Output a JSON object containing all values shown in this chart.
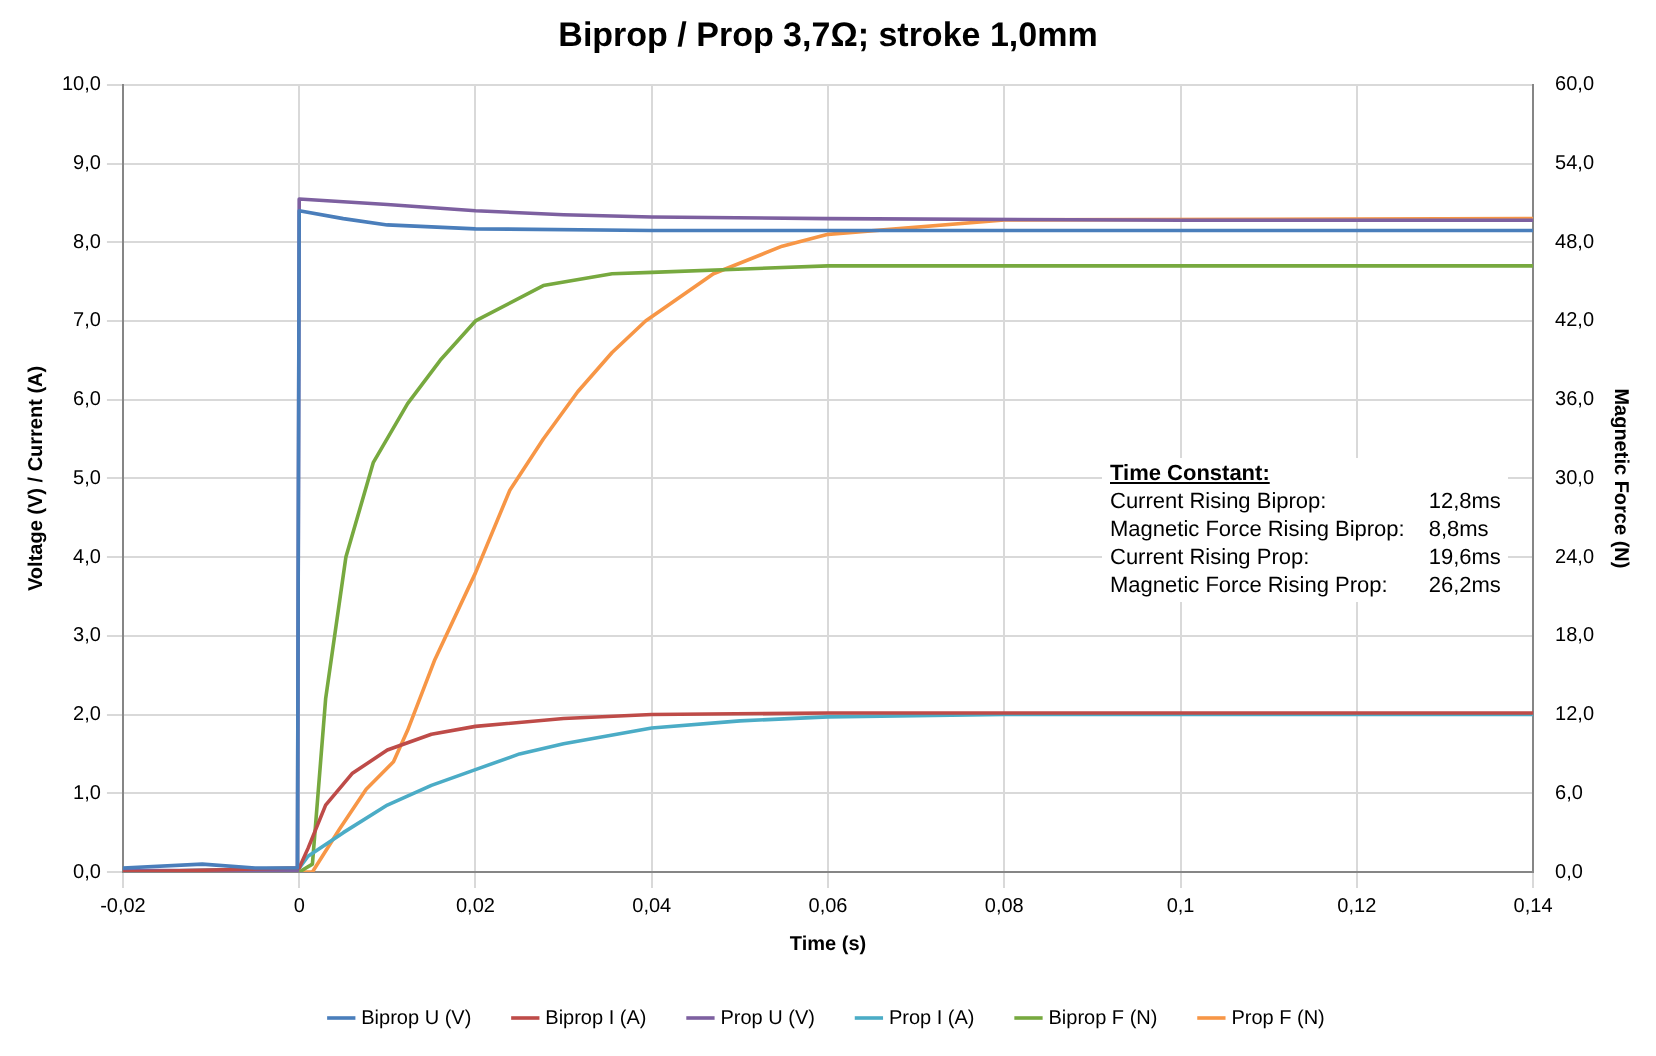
{
  "chart_data": {
    "type": "line",
    "title": "Biprop / Prop 3,7Ω; stroke 1,0mm",
    "xlabel": "Time (s)",
    "ylabel": "Voltage (V) / Current (A)",
    "y2label": "Magnetic Force (N)",
    "xlim": [
      -0.02,
      0.14
    ],
    "xticks": [
      {
        "value": -0.02,
        "label": "-0,02"
      },
      0,
      {
        "value": 0.02,
        "label": "0,02"
      },
      {
        "value": 0.04,
        "label": "0,04"
      },
      {
        "value": 0.06,
        "label": "0,06"
      },
      {
        "value": 0.08,
        "label": "0,08"
      },
      {
        "value": 0.1,
        "label": "0,1"
      },
      {
        "value": 0.12,
        "label": "0,12"
      },
      {
        "value": 0.14,
        "label": "0,14"
      }
    ],
    "ylim": [
      0,
      10
    ],
    "yticks": [
      {
        "value": 0,
        "label": "0,0"
      },
      {
        "value": 1,
        "label": "1,0"
      },
      {
        "value": 2,
        "label": "2,0"
      },
      {
        "value": 3,
        "label": "3,0"
      },
      {
        "value": 4,
        "label": "4,0"
      },
      {
        "value": 5,
        "label": "5,0"
      },
      {
        "value": 6,
        "label": "6,0"
      },
      {
        "value": 7,
        "label": "7,0"
      },
      {
        "value": 8,
        "label": "8,0"
      },
      {
        "value": 9,
        "label": "9,0"
      },
      {
        "value": 10,
        "label": "10,0"
      }
    ],
    "y2lim": [
      0,
      60
    ],
    "y2ticks": [
      {
        "value": 0,
        "label": "0,0"
      },
      {
        "value": 6,
        "label": "6,0"
      },
      {
        "value": 12,
        "label": "12,0"
      },
      {
        "value": 18,
        "label": "18,0"
      },
      {
        "value": 24,
        "label": "24,0"
      },
      {
        "value": 30,
        "label": "30,0"
      },
      {
        "value": 36,
        "label": "36,0"
      },
      {
        "value": 42,
        "label": "42,0"
      },
      {
        "value": 48,
        "label": "48,0"
      },
      {
        "value": 54,
        "label": "54,0"
      },
      {
        "value": 60,
        "label": "60,0"
      }
    ],
    "grid": true,
    "legend": "bottom",
    "marker": "none",
    "line_style": "solid",
    "series": [
      {
        "name": "Biprop U (V)",
        "color": "#4a7ebb",
        "x": [
          -0.02,
          -0.011,
          -0.005,
          -0.0002,
          0,
          0.005,
          0.01,
          0.02,
          0.04,
          0.08,
          0.14
        ],
        "values": [
          0.05,
          0.1,
          0.05,
          0.05,
          8.4,
          8.3,
          8.22,
          8.17,
          8.15,
          8.15,
          8.15
        ]
      },
      {
        "name": "Biprop I (A)",
        "color": "#be4b48",
        "x": [
          -0.02,
          0,
          0.001,
          0.003,
          0.006,
          0.01,
          0.015,
          0.02,
          0.03,
          0.04,
          0.06,
          0.14
        ],
        "values": [
          0,
          0.05,
          0.3,
          0.85,
          1.25,
          1.55,
          1.75,
          1.85,
          1.95,
          2,
          2.02,
          2.02
        ]
      },
      {
        "name": "Prop U (V)",
        "color": "#7d60a0",
        "x": [
          -0.02,
          -0.0002,
          0,
          0.01,
          0.02,
          0.03,
          0.04,
          0.06,
          0.1,
          0.14
        ],
        "values": [
          0.02,
          0.02,
          8.55,
          8.48,
          8.4,
          8.35,
          8.32,
          8.3,
          8.28,
          8.28
        ]
      },
      {
        "name": "Prop I (A)",
        "color": "#4bacc6",
        "x": [
          -0.02,
          0,
          0.001,
          0.005,
          0.01,
          0.015,
          0.02,
          0.025,
          0.03,
          0.04,
          0.05,
          0.06,
          0.08,
          0.14
        ],
        "values": [
          0,
          0.05,
          0.2,
          0.5,
          0.85,
          1.1,
          1.3,
          1.5,
          1.63,
          1.83,
          1.92,
          1.97,
          2,
          2
        ]
      },
      {
        "name": "Biprop F (N)",
        "color": "#77a93f",
        "axis": "y2",
        "x": [
          -0.02,
          0,
          0.0015,
          0.003,
          0.0053,
          0.0084,
          0.0123,
          0.016,
          0.02,
          0.0277,
          0.0355,
          0.04,
          0.06,
          0.14
        ],
        "values": [
          0,
          0,
          0.6,
          13.2,
          24,
          31.2,
          35.7,
          39,
          42,
          44.7,
          45.6,
          45.7,
          46.2,
          46.2
        ]
      },
      {
        "name": "Prop F (N)",
        "color": "#f79646",
        "axis": "y2",
        "x": [
          -0.02,
          0.0015,
          0.0046,
          0.0076,
          0.0107,
          0.0123,
          0.0154,
          0.02,
          0.0239,
          0.0277,
          0.0316,
          0.0355,
          0.0393,
          0.047,
          0.0548,
          0.06,
          0.08,
          0.14
        ],
        "values": [
          0,
          0,
          3.3,
          6.3,
          8.4,
          10.8,
          16.2,
          22.8,
          29.1,
          33,
          36.6,
          39.6,
          42,
          45.6,
          47.7,
          48.6,
          49.7,
          49.8
        ]
      }
    ],
    "annotations": [
      "Time Constant:",
      "Current Rising Biprop:",
      "12,8ms",
      "Magnetic Force Rising Biprop:",
      "8,8ms",
      "Current Rising Prop:",
      "19,6ms",
      "Magnetic Force Rising Prop:",
      "26,2ms"
    ]
  }
}
